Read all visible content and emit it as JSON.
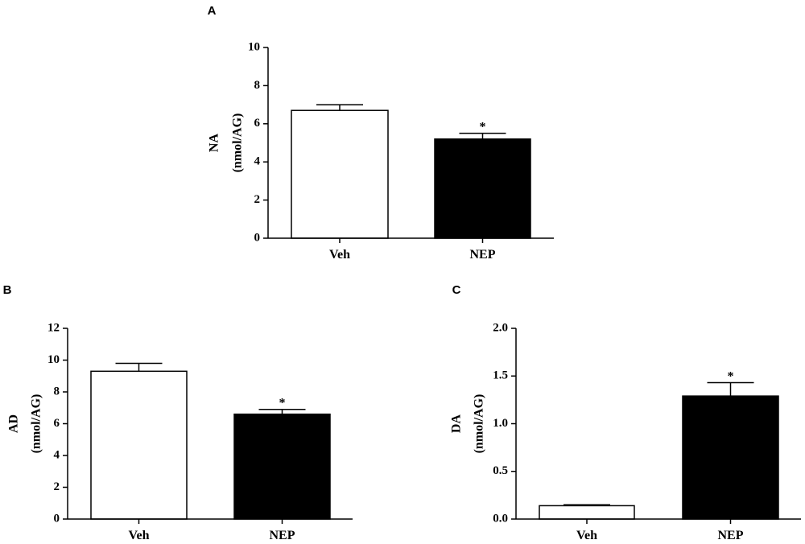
{
  "chart_data": [
    {
      "panel": "A",
      "type": "bar",
      "categories": [
        "Veh",
        "NEP"
      ],
      "values": [
        6.7,
        5.2
      ],
      "errors": [
        0.3,
        0.3
      ],
      "significance": [
        "",
        "*"
      ],
      "colors": [
        "#ffffff",
        "#000000"
      ],
      "ylabel_line1": "NA",
      "ylabel_line2": "(nmol/AG)",
      "ylim": [
        0,
        10
      ],
      "yticks": [
        0,
        2,
        4,
        6,
        8,
        10
      ],
      "ytick_labels": [
        "0",
        "2",
        "4",
        "6",
        "8",
        "10"
      ],
      "grid": false
    },
    {
      "panel": "B",
      "type": "bar",
      "categories": [
        "Veh",
        "NEP"
      ],
      "values": [
        9.3,
        6.6
      ],
      "errors": [
        0.5,
        0.3
      ],
      "significance": [
        "",
        "*"
      ],
      "colors": [
        "#ffffff",
        "#000000"
      ],
      "ylabel_line1": "AD",
      "ylabel_line2": "(nmol/AG)",
      "ylim": [
        0,
        12
      ],
      "yticks": [
        0,
        2,
        4,
        6,
        8,
        10,
        12
      ],
      "ytick_labels": [
        "0",
        "2",
        "4",
        "6",
        "8",
        "10",
        "12"
      ],
      "grid": false
    },
    {
      "panel": "C",
      "type": "bar",
      "categories": [
        "Veh",
        "NEP"
      ],
      "values": [
        0.14,
        1.29
      ],
      "errors": [
        0.01,
        0.14
      ],
      "significance": [
        "",
        "*"
      ],
      "colors": [
        "#ffffff",
        "#000000"
      ],
      "ylabel_line1": "DA",
      "ylabel_line2": "(nmol/AG)",
      "ylim": [
        0,
        2.0
      ],
      "yticks": [
        0,
        0.5,
        1.0,
        1.5,
        2.0
      ],
      "ytick_labels": [
        "0.0",
        "0.5",
        "1.0",
        "1.5",
        "2.0"
      ],
      "grid": false
    }
  ]
}
